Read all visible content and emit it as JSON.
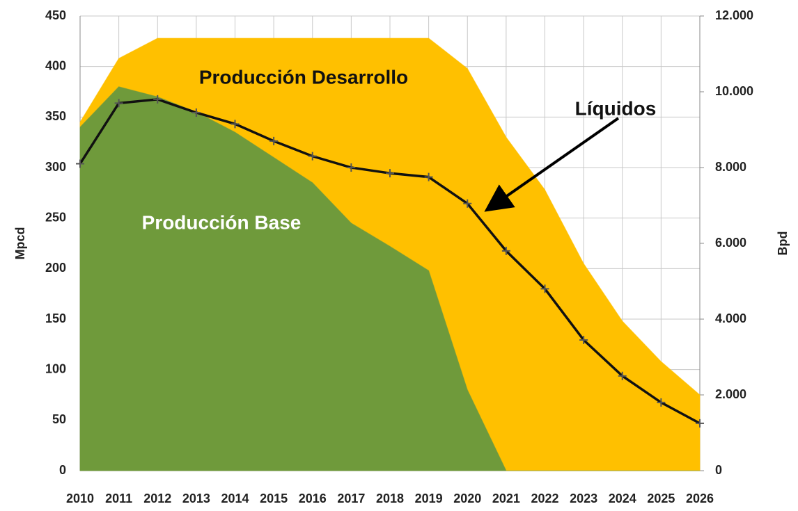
{
  "chart_data": {
    "type": "stacked_area_line",
    "categories": [
      "2010",
      "2011",
      "2012",
      "2013",
      "2014",
      "2015",
      "2016",
      "2017",
      "2018",
      "2019",
      "2020",
      "2021",
      "2022",
      "2023",
      "2024",
      "2025",
      "2026"
    ],
    "series": [
      {
        "name": "Producción Base",
        "color": "#6f9a3b",
        "values": [
          340,
          380,
          370,
          355,
          335,
          310,
          285,
          245,
          222,
          198,
          80,
          0,
          0,
          0,
          0,
          0,
          0
        ]
      },
      {
        "name": "Producción Desarrollo",
        "color": "#ffc000",
        "values": [
          5,
          28,
          58,
          73,
          93,
          118,
          143,
          183,
          206,
          230,
          318,
          330,
          278,
          205,
          148,
          108,
          75
        ]
      },
      {
        "name": "Líquidos",
        "color": "#111111",
        "axis": "y2",
        "values": [
          8100,
          9700,
          9800,
          9450,
          9150,
          8700,
          8300,
          8000,
          7850,
          7750,
          7050,
          5800,
          4800,
          3450,
          2500,
          1800,
          1250
        ]
      }
    ],
    "ylabel": "Mpcd",
    "y2label": "Bpd",
    "ylim": [
      0,
      450
    ],
    "yticks": [
      0,
      50,
      100,
      150,
      200,
      250,
      300,
      350,
      400,
      450
    ],
    "y2lim": [
      0,
      12000
    ],
    "y2ticks": [
      0,
      {
        "value": 2000,
        "label": "2.000"
      },
      {
        "value": 4000,
        "label": "4.000"
      },
      {
        "value": 6000,
        "label": "6.000"
      },
      {
        "value": 8000,
        "label": "8.000"
      },
      {
        "value": 10000,
        "label": "10.000"
      },
      {
        "value": 12000,
        "label": "12.000"
      }
    ],
    "grid": true
  }
}
